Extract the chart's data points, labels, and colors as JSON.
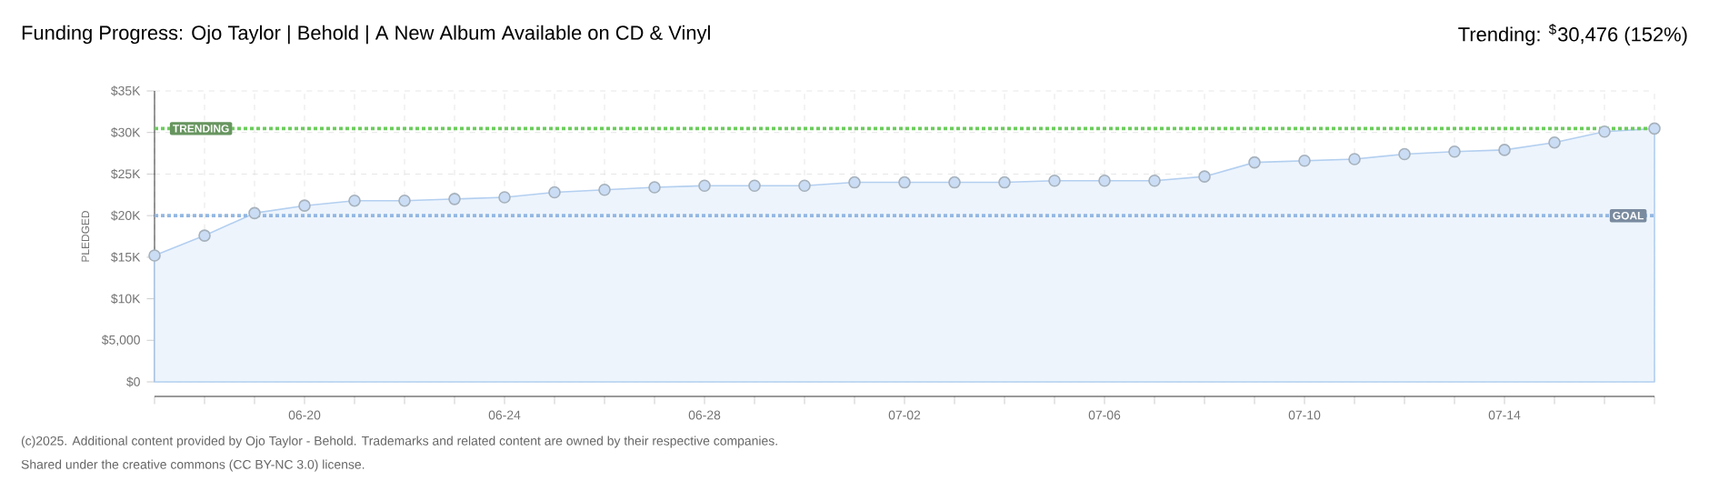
{
  "chart_data": {
    "type": "area",
    "title": "Funding Progress: Ojo Taylor | Behold | A New Album Available on CD & Vinyl",
    "subtitle": "Trending: $^{$}$30,476 (152%)",
    "ylabel": "PLEDGED",
    "annotations": [
      "(c)2025. Additional content provided by Ojo Taylor - Behold. Trademarks and related content are owned by their respective companies.",
      "Shared under the creative commons (CC BY-NC 3.0) license."
    ],
    "x": [
      "2025-06-17",
      "2025-06-18",
      "2025-06-19",
      "2025-06-20",
      "2025-06-21",
      "2025-06-22",
      "2025-06-23",
      "2025-06-24",
      "2025-06-25",
      "2025-06-26",
      "2025-06-27",
      "2025-06-28",
      "2025-06-29",
      "2025-06-30",
      "2025-07-01",
      "2025-07-02",
      "2025-07-03",
      "2025-07-04",
      "2025-07-05",
      "2025-07-06",
      "2025-07-07",
      "2025-07-08",
      "2025-07-09",
      "2025-07-10",
      "2025-07-11",
      "2025-07-12",
      "2025-07-13",
      "2025-07-14",
      "2025-07-15",
      "2025-07-16",
      "2025-07-17"
    ],
    "values": [
      15200,
      17600,
      20300,
      21200,
      21800,
      21800,
      22000,
      22200,
      22800,
      23100,
      23400,
      23600,
      23600,
      23600,
      24000,
      24000,
      24000,
      24000,
      24200,
      24200,
      24200,
      24700,
      26400,
      26600,
      26800,
      27400,
      27700,
      27900,
      28800,
      30100,
      30476
    ],
    "color": "#b3cff0",
    "xlim": [
      "2025-06-17",
      "2025-07-17"
    ],
    "xticks": [
      {
        "value": "2025-06-17",
        "label": null
      },
      {
        "value": "2025-06-18",
        "label": null
      },
      {
        "value": "2025-06-19",
        "label": null
      },
      {
        "value": "2025-06-20",
        "label": "06-20"
      },
      {
        "value": "2025-06-21",
        "label": null
      },
      {
        "value": "2025-06-22",
        "label": null
      },
      {
        "value": "2025-06-23",
        "label": null
      },
      {
        "value": "2025-06-24",
        "label": "06-24"
      },
      {
        "value": "2025-06-25",
        "label": null
      },
      {
        "value": "2025-06-26",
        "label": null
      },
      {
        "value": "2025-06-27",
        "label": null
      },
      {
        "value": "2025-06-28",
        "label": "06-28"
      },
      {
        "value": "2025-06-29",
        "label": null
      },
      {
        "value": "2025-06-30",
        "label": null
      },
      {
        "value": "2025-07-01",
        "label": null
      },
      {
        "value": "2025-07-02",
        "label": "07-02"
      },
      {
        "value": "2025-07-03",
        "label": null
      },
      {
        "value": "2025-07-04",
        "label": null
      },
      {
        "value": "2025-07-05",
        "label": null
      },
      {
        "value": "2025-07-06",
        "label": "07-06"
      },
      {
        "value": "2025-07-07",
        "label": null
      },
      {
        "value": "2025-07-08",
        "label": null
      },
      {
        "value": "2025-07-09",
        "label": null
      },
      {
        "value": "2025-07-10",
        "label": "07-10"
      },
      {
        "value": "2025-07-11",
        "label": null
      },
      {
        "value": "2025-07-12",
        "label": null
      },
      {
        "value": "2025-07-13",
        "label": null
      },
      {
        "value": "2025-07-14",
        "label": "07-14"
      },
      {
        "value": "2025-07-15",
        "label": null
      },
      {
        "value": "2025-07-16",
        "label": null
      },
      {
        "value": "2025-07-17",
        "label": null
      }
    ],
    "ylim": [
      0,
      35000
    ],
    "yticks": [
      {
        "value": 0,
        "label": "$0"
      },
      {
        "value": 5000,
        "label": "$5,000"
      },
      {
        "value": 10000,
        "label": "$10K"
      },
      {
        "value": 15000,
        "label": "$15K"
      },
      {
        "value": 20000,
        "label": "$20K"
      },
      {
        "value": 25000,
        "label": "$25K"
      },
      {
        "value": 30000,
        "label": "$30K"
      },
      {
        "value": 35000,
        "label": "$35K"
      }
    ],
    "ref_lines": [
      {
        "axis": "y",
        "value": 30476,
        "label": "TRENDING",
        "color": "#6ccc5c",
        "line_style": "dotted"
      },
      {
        "axis": "y",
        "value": 20000,
        "label": "GOAL",
        "color": "#94b8e2",
        "line_style": "dotted"
      }
    ],
    "grid": true,
    "marker": "circle",
    "line_style": "solid"
  }
}
